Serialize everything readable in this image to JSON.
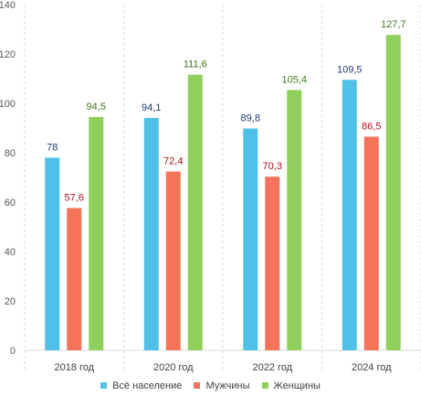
{
  "chart_data": {
    "type": "bar",
    "categories": [
      "2018 год",
      "2020 год",
      "2022 год",
      "2024 год"
    ],
    "series": [
      {
        "name": "Всё население",
        "values": [
          78,
          94.1,
          89.8,
          109.5
        ],
        "labels": [
          "78",
          "94,1",
          "89,8",
          "109,5"
        ],
        "color": "#4FC1E9",
        "label_color": "#1F3B70"
      },
      {
        "name": "Мужчины",
        "values": [
          57.6,
          72.4,
          70.3,
          86.5
        ],
        "labels": [
          "57,6",
          "72,4",
          "70,3",
          "86,5"
        ],
        "color": "#F47359",
        "label_color": "#B0101A"
      },
      {
        "name": "Женщины",
        "values": [
          94.5,
          111.6,
          105.4,
          127.7
        ],
        "labels": [
          "94,5",
          "111,6",
          "105,4",
          "127,7"
        ],
        "color": "#8FD05C",
        "label_color": "#3C7A1A"
      }
    ],
    "yticks": [
      "0",
      "20",
      "40",
      "60",
      "80",
      "100",
      "120",
      "140"
    ],
    "ylim": [
      0,
      140
    ],
    "grid": false,
    "category_separators": true,
    "legend_position": "bottom"
  }
}
